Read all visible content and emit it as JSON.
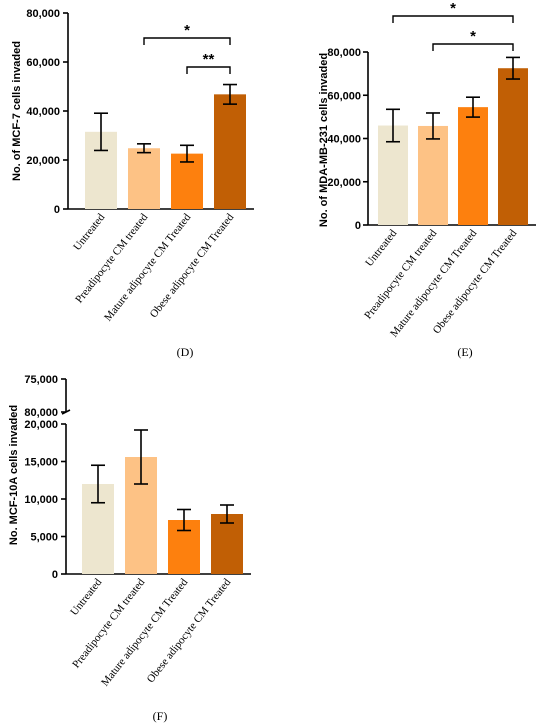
{
  "colors": [
    "#ede6cf",
    "#fdc285",
    "#fd800e",
    "#c15f05"
  ],
  "chart_data": [
    {
      "type": "bar",
      "panel_label": "(D)",
      "ylabel": "No. of MCF-7 cells invaded",
      "categories": [
        "Untreated",
        "Preadipocyte CM treated",
        "Mature adipocyte CM Treated",
        "Obese adipocyte CM Treated"
      ],
      "values": [
        31500,
        24800,
        22600,
        46800
      ],
      "errors": [
        7600,
        1800,
        3400,
        4000
      ],
      "ylim": [
        0,
        80000
      ],
      "yticks": [
        "0",
        "20,000",
        "40,000",
        "60,000",
        "80,000"
      ],
      "annotations": [
        {
          "from": 1,
          "to": 3,
          "label": "*"
        },
        {
          "from": 2,
          "to": 3,
          "label": "**"
        }
      ]
    },
    {
      "type": "bar",
      "panel_label": "(E)",
      "ylabel": "No. of MDA-MB-231 cells invaded",
      "categories": [
        "Untreated",
        "Preadipocyte CM treated",
        "Mature adipocyte CM Treated",
        "Obese adipocyte CM Treated"
      ],
      "values": [
        46000,
        45800,
        54500,
        72500
      ],
      "errors": [
        7500,
        6000,
        4600,
        5000
      ],
      "ylim": [
        0,
        80000
      ],
      "yticks": [
        "0",
        "20,000",
        "40,000",
        "60,000",
        "80,000"
      ],
      "annotations": [
        {
          "from": 0,
          "to": 3,
          "label": "*"
        },
        {
          "from": 1,
          "to": 3,
          "label": "*"
        }
      ]
    },
    {
      "type": "bar",
      "panel_label": "(F)",
      "ylabel": "No. MCF-10A cells invaded",
      "categories": [
        "Untreated",
        "Preadipocyte CM treated",
        "Mature adipocyte CM Treated",
        "Obese adipocyte CM Treated"
      ],
      "values": [
        12000,
        15600,
        7200,
        8000
      ],
      "errors": [
        2500,
        3600,
        1400,
        1200
      ],
      "ylim": [
        0,
        20000
      ],
      "yticks": [
        "0",
        "5,000",
        "10,000",
        "15,000",
        "20,000"
      ],
      "axis_break": true,
      "upper_yticks": [
        "75,000",
        "80,000"
      ],
      "annotations": []
    }
  ]
}
